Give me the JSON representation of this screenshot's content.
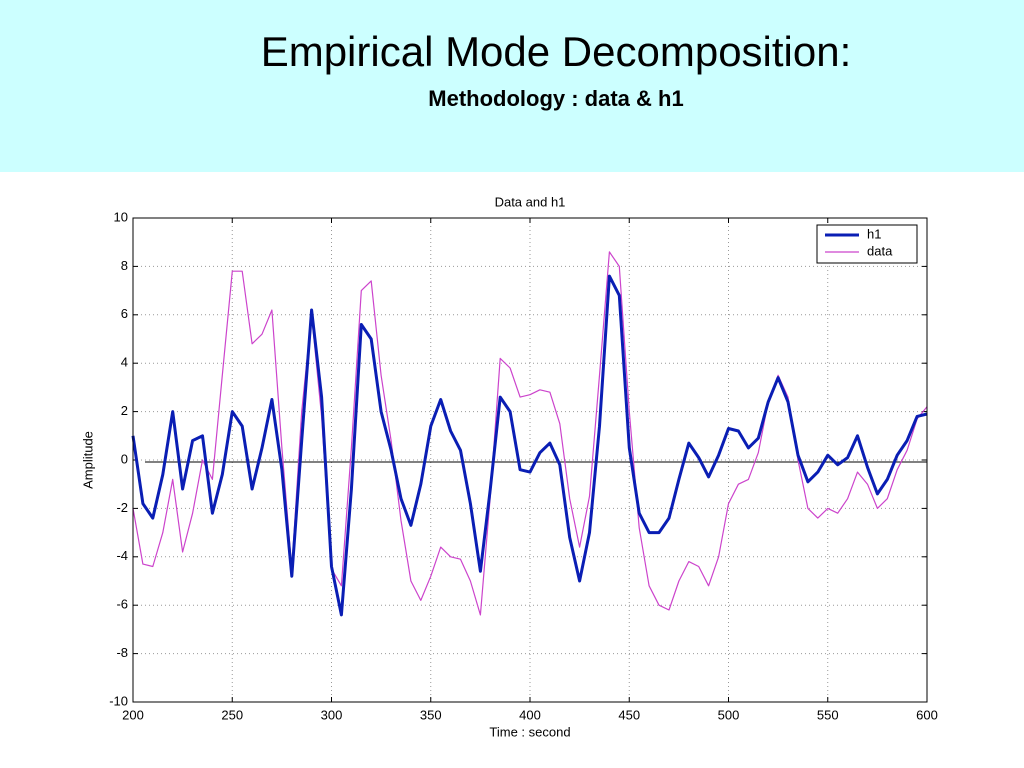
{
  "header": {
    "title": "Empirical Mode Decomposition:",
    "subtitle": "Methodology : data & h1"
  },
  "chart_data": {
    "type": "line",
    "title": "Data and h1",
    "xlabel": "Time : second",
    "ylabel": "Amplitude",
    "x": [
      200,
      205,
      210,
      215,
      220,
      225,
      230,
      235,
      240,
      245,
      250,
      255,
      260,
      265,
      270,
      275,
      280,
      285,
      290,
      295,
      300,
      305,
      310,
      315,
      320,
      325,
      330,
      335,
      340,
      345,
      350,
      355,
      360,
      365,
      370,
      375,
      380,
      385,
      390,
      395,
      400,
      405,
      410,
      415,
      420,
      425,
      430,
      435,
      440,
      445,
      450,
      455,
      460,
      465,
      470,
      475,
      480,
      485,
      490,
      495,
      500,
      505,
      510,
      515,
      520,
      525,
      530,
      535,
      540,
      545,
      550,
      555,
      560,
      565,
      570,
      575,
      580,
      585,
      590,
      595,
      600
    ],
    "series": [
      {
        "name": "h1",
        "color": "#0a1eb4",
        "values": [
          1.0,
          -1.8,
          -2.4,
          -0.6,
          2.0,
          -1.2,
          0.8,
          1.0,
          -2.2,
          -0.6,
          2.0,
          1.4,
          -1.2,
          0.5,
          2.5,
          -0.4,
          -4.8,
          0.8,
          6.2,
          2.6,
          -4.4,
          -6.4,
          -1.2,
          5.6,
          5.0,
          2.0,
          0.4,
          -1.6,
          -2.7,
          -1.0,
          1.4,
          2.5,
          1.2,
          0.4,
          -1.8,
          -4.6,
          -1.2,
          2.6,
          2.0,
          -0.4,
          -0.5,
          0.3,
          0.7,
          -0.2,
          -3.2,
          -5.0,
          -3.0,
          1.4,
          7.6,
          6.8,
          0.5,
          -2.2,
          -3.0,
          -3.0,
          -2.4,
          -0.8,
          0.7,
          0.1,
          -0.7,
          0.2,
          1.3,
          1.2,
          0.5,
          0.9,
          2.4,
          3.4,
          2.4,
          0.2,
          -0.9,
          -0.5,
          0.2,
          -0.2,
          0.1,
          1.0,
          -0.3,
          -1.4,
          -0.8,
          0.2,
          0.8,
          1.8,
          1.9
        ]
      },
      {
        "name": "data",
        "color": "#cc44cc",
        "values": [
          -2.0,
          -4.3,
          -4.4,
          -3.0,
          -0.8,
          -3.8,
          -2.2,
          0.0,
          -0.8,
          3.5,
          7.8,
          7.8,
          4.8,
          5.2,
          6.2,
          0.5,
          -4.5,
          2.0,
          6.0,
          1.8,
          -4.5,
          -5.2,
          0.5,
          7.0,
          7.4,
          3.5,
          0.8,
          -2.5,
          -5.0,
          -5.8,
          -4.8,
          -3.6,
          -4.0,
          -4.1,
          -5.0,
          -6.4,
          -1.5,
          4.2,
          3.8,
          2.6,
          2.7,
          2.9,
          2.8,
          1.5,
          -1.6,
          -3.6,
          -1.5,
          3.5,
          8.6,
          8.0,
          2.0,
          -2.8,
          -5.2,
          -6.0,
          -6.2,
          -5.0,
          -4.2,
          -4.4,
          -5.2,
          -4.0,
          -1.8,
          -1.0,
          -0.8,
          0.3,
          2.4,
          3.5,
          2.6,
          0.0,
          -2.0,
          -2.4,
          -2.0,
          -2.2,
          -1.6,
          -0.5,
          -1.0,
          -2.0,
          -1.6,
          -0.4,
          0.4,
          1.7,
          2.2
        ]
      }
    ],
    "xlim": [
      200,
      600
    ],
    "ylim": [
      -10,
      10
    ],
    "xticks": [
      200,
      250,
      300,
      350,
      400,
      450,
      500,
      550,
      600
    ],
    "yticks": [
      -10,
      -8,
      -6,
      -4,
      -2,
      0,
      2,
      4,
      6,
      8,
      10
    ],
    "grid": true,
    "legend": "upper right"
  }
}
